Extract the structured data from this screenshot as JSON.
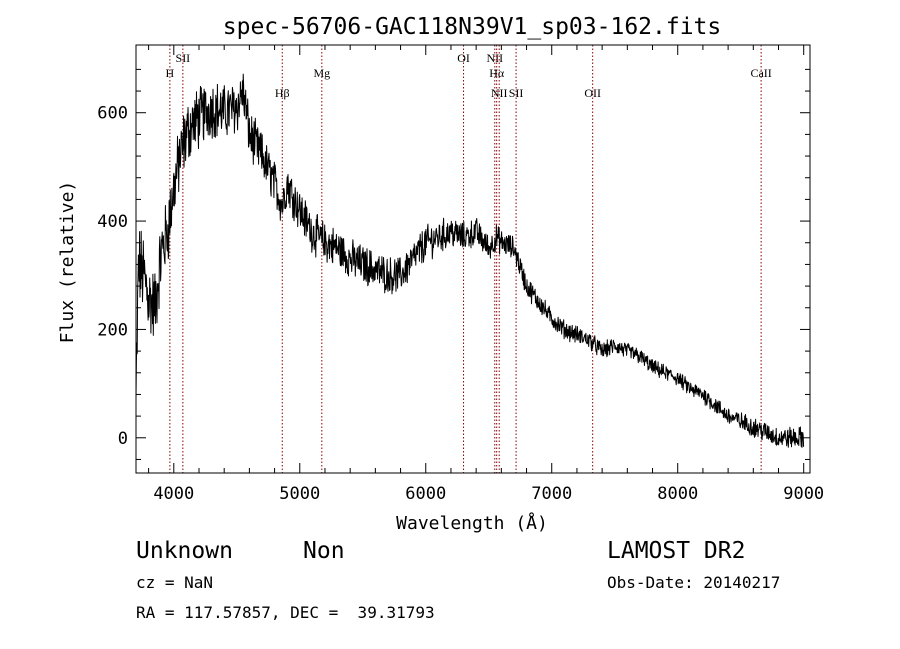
{
  "chart_data": {
    "type": "line",
    "title": "spec-56706-GAC118N39V1_sp03-162.fits",
    "xlabel": "Wavelength (Å)",
    "ylabel": "Flux (relative)",
    "xlim": [
      3700,
      9050
    ],
    "ylim": [
      -65,
      725
    ],
    "xticks": [
      4000,
      5000,
      6000,
      7000,
      8000,
      9000
    ],
    "xtick_labels": [
      "4000",
      "5000",
      "6000",
      "7000",
      "8000",
      "9000"
    ],
    "yticks": [
      0,
      200,
      400,
      600
    ],
    "ytick_labels": [
      "0",
      "200",
      "400",
      "600"
    ],
    "line_color": "#000000",
    "marker_color": "#8b0000",
    "spectrum_anchors": {
      "x": [
        3700,
        3720,
        3760,
        3800,
        3850,
        3900,
        3950,
        4000,
        4050,
        4100,
        4150,
        4200,
        4300,
        4400,
        4500,
        4550,
        4600,
        4700,
        4800,
        4861,
        4900,
        5000,
        5100,
        5200,
        5300,
        5400,
        5500,
        5600,
        5700,
        5800,
        5900,
        6000,
        6100,
        6200,
        6300,
        6400,
        6500,
        6563,
        6600,
        6700,
        6800,
        6900,
        7000,
        7100,
        7200,
        7300,
        7400,
        7500,
        7600,
        7700,
        7800,
        7900,
        8000,
        8100,
        8200,
        8300,
        8400,
        8500,
        8600,
        8700,
        8800,
        8900,
        9000
      ],
      "y": [
        60,
        320,
        300,
        260,
        240,
        340,
        380,
        460,
        520,
        560,
        580,
        590,
        610,
        600,
        610,
        640,
        560,
        520,
        470,
        430,
        470,
        420,
        380,
        360,
        350,
        330,
        320,
        310,
        300,
        300,
        330,
        360,
        370,
        380,
        370,
        380,
        350,
        370,
        360,
        350,
        280,
        250,
        220,
        200,
        190,
        180,
        160,
        170,
        160,
        150,
        130,
        120,
        110,
        90,
        80,
        60,
        40,
        30,
        20,
        10,
        0,
        0,
        0
      ],
      "noise_amplitude": {
        "x": [
          3700,
          4000,
          4800,
          6000,
          7000,
          8000,
          9000
        ],
        "amp": [
          70,
          55,
          35,
          28,
          15,
          12,
          18
        ]
      }
    },
    "line_markers": [
      {
        "name": "H",
        "wavelength": 3969
      },
      {
        "name": "SII",
        "wavelength": 4072
      },
      {
        "name": "Hβ",
        "wavelength": 4861
      },
      {
        "name": "Mg",
        "wavelength": 5175
      },
      {
        "name": "OI",
        "wavelength": 6300
      },
      {
        "name": "NII",
        "wavelength": 6548
      },
      {
        "name": "Hα",
        "wavelength": 6563
      },
      {
        "name": "NII",
        "wavelength": 6583
      },
      {
        "name": "SII",
        "wavelength": 6717
      },
      {
        "name": "OII",
        "wavelength": 7325
      },
      {
        "name": "CaII",
        "wavelength": 8662
      }
    ]
  },
  "info": {
    "class": "Unknown",
    "subclass": "Non",
    "survey": "LAMOST DR2",
    "cz": "cz = NaN",
    "obs_date": "Obs-Date: 20140217",
    "coords": "RA = 117.57857, DEC =  39.31793"
  }
}
